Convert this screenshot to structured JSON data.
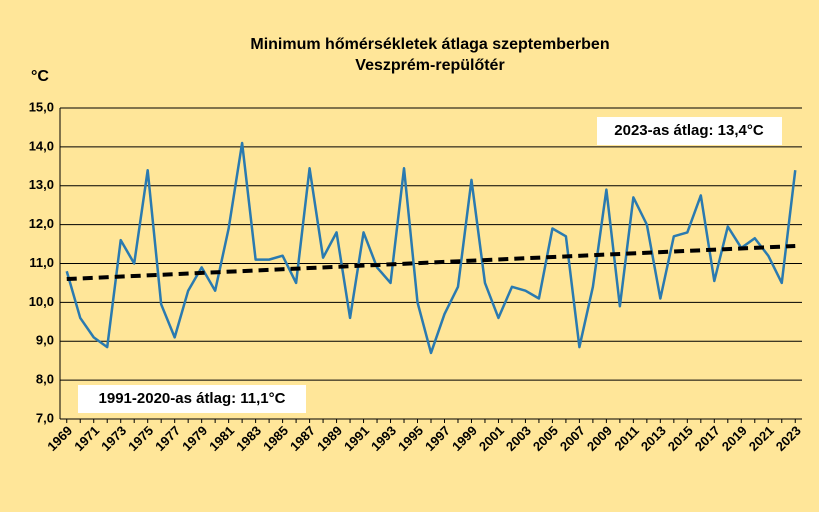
{
  "chart_data": {
    "type": "line",
    "title": "Minimum hőmérsékletek átlaga szeptemberben",
    "subtitle": "Veszprém-repülőtér",
    "y_label": "°C",
    "categories": [
      "1969",
      null,
      "1971",
      null,
      "1973",
      null,
      "1975",
      null,
      "1977",
      null,
      "1979",
      null,
      "1981",
      null,
      "1983",
      null,
      "1985",
      null,
      "1987",
      null,
      "1989",
      null,
      "1991",
      null,
      "1993",
      null,
      "1995",
      null,
      "1997",
      null,
      "1999",
      null,
      "2001",
      null,
      "2003",
      null,
      "2005",
      null,
      "2007",
      null,
      "2009",
      null,
      "2011",
      null,
      "2013",
      null,
      "2015",
      null,
      "2017",
      null,
      "2019",
      null,
      "2021",
      null,
      "2023"
    ],
    "values": [
      10.8,
      9.6,
      9.1,
      8.85,
      11.6,
      11.0,
      13.4,
      9.95,
      9.1,
      10.3,
      10.9,
      10.3,
      11.9,
      14.1,
      11.1,
      11.1,
      11.2,
      10.5,
      13.45,
      11.15,
      11.8,
      9.6,
      11.8,
      10.9,
      10.5,
      13.45,
      10.0,
      8.7,
      9.7,
      10.4,
      13.15,
      10.5,
      9.6,
      10.4,
      10.3,
      10.1,
      11.9,
      11.7,
      8.85,
      10.4,
      12.9,
      9.9,
      12.7,
      12.0,
      10.1,
      11.7,
      11.8,
      12.75,
      10.55,
      11.95,
      11.4,
      11.65,
      11.2,
      10.5,
      13.4
    ],
    "color": "#2a7ab0",
    "trend": {
      "values": [
        10.6,
        11.45
      ],
      "color": "#000000"
    },
    "ylim": [
      7,
      15
    ],
    "yticks": [
      {
        "value": 7,
        "label": "7,0"
      },
      {
        "value": 8,
        "label": "8,0"
      },
      {
        "value": 9,
        "label": "9,0"
      },
      {
        "value": 10,
        "label": "10,0"
      },
      {
        "value": 11,
        "label": "11,0"
      },
      {
        "value": 12,
        "label": "12,0"
      },
      {
        "value": 13,
        "label": "13,0"
      },
      {
        "value": 14,
        "label": "14,0"
      },
      {
        "value": 15,
        "label": "15,0"
      }
    ],
    "grid": true,
    "annotations": [
      "2023-as átlag: 13,4°C",
      "1991-2020-as átlag: 11,1°C"
    ]
  }
}
